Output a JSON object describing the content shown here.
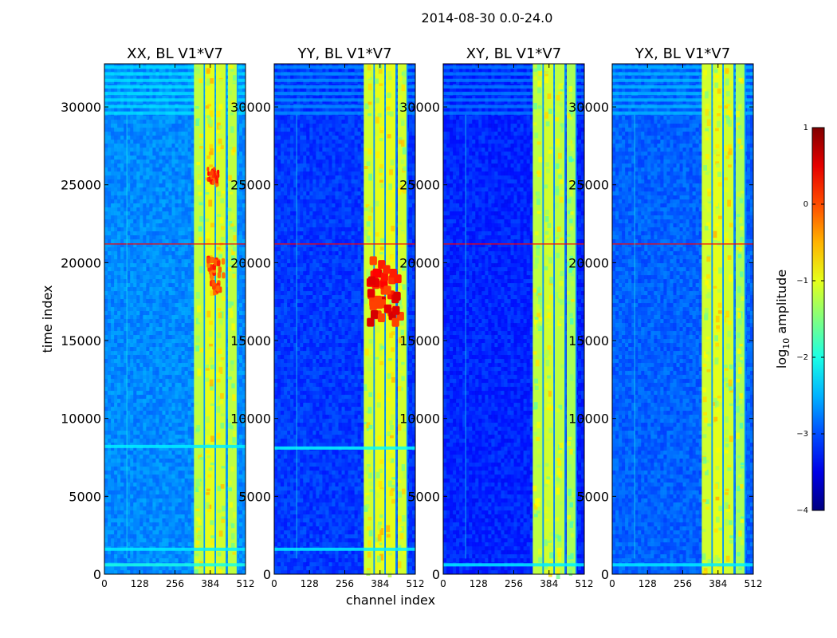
{
  "chart_data": {
    "type": "heatmap",
    "suptitle": "2014-08-30 0.0-24.0",
    "xlabel": "channel index",
    "ylabel": "time index",
    "xlim": [
      0,
      512
    ],
    "ylim": [
      0,
      32768
    ],
    "xticks": [
      0,
      128,
      256,
      384,
      512
    ],
    "yticks": [
      0,
      5000,
      10000,
      15000,
      20000,
      25000,
      30000
    ],
    "colorbar": {
      "label": "log10 amplitude",
      "label_base": "log",
      "label_sub": "10",
      "label_rest": " amplitude",
      "range": [
        -4,
        1
      ],
      "ticks": [
        1,
        0,
        -1,
        -2,
        -3,
        -4
      ],
      "tick_labels": [
        "1",
        "0",
        "−1",
        "−2",
        "−3",
        "−4"
      ],
      "colormap": "jet"
    },
    "panels": [
      {
        "title": "XX, BL V1*V7",
        "background_log_amp": -2.7,
        "bands": [
          {
            "x0": 325,
            "x1": 360,
            "level": -1.2
          },
          {
            "x0": 365,
            "x1": 400,
            "level": -1.0
          },
          {
            "x0": 405,
            "x1": 440,
            "level": -1.1
          },
          {
            "x0": 448,
            "x1": 480,
            "level": -1.2
          }
        ],
        "hot_regions": [
          {
            "x0": 370,
            "x1": 440,
            "y0": 18000,
            "y1": 20500,
            "level": 0.0
          },
          {
            "x0": 370,
            "x1": 420,
            "y0": 25000,
            "y1": 26200,
            "level": 0.1
          }
        ],
        "horizontal_features": [
          {
            "y": 21200,
            "level": 0.4
          },
          {
            "y": 8200,
            "level": -2.2
          },
          {
            "y": 1600,
            "level": -2.2
          },
          {
            "y": 600,
            "level": -2.0
          }
        ]
      },
      {
        "title": "YY, BL V1*V7",
        "background_log_amp": -3.1,
        "bands": [
          {
            "x0": 325,
            "x1": 360,
            "level": -1.1
          },
          {
            "x0": 365,
            "x1": 400,
            "level": -1.0
          },
          {
            "x0": 405,
            "x1": 440,
            "level": -1.0
          },
          {
            "x0": 448,
            "x1": 480,
            "level": -1.1
          }
        ],
        "hot_regions": [
          {
            "x0": 330,
            "x1": 480,
            "y0": 16000,
            "y1": 20500,
            "level": 0.3
          }
        ],
        "horizontal_features": [
          {
            "y": 21200,
            "level": 0.4
          },
          {
            "y": 8100,
            "level": -2.1
          },
          {
            "y": 1600,
            "level": -2.2
          }
        ]
      },
      {
        "title": "XY, BL V1*V7",
        "background_log_amp": -3.2,
        "bands": [
          {
            "x0": 325,
            "x1": 360,
            "level": -1.2
          },
          {
            "x0": 365,
            "x1": 400,
            "level": -1.1
          },
          {
            "x0": 405,
            "x1": 440,
            "level": -1.2
          },
          {
            "x0": 448,
            "x1": 480,
            "level": -1.3
          }
        ],
        "hot_regions": [],
        "horizontal_features": [
          {
            "y": 21200,
            "level": 0.4
          },
          {
            "y": 600,
            "level": -2.2
          }
        ]
      },
      {
        "title": "YX, BL V1*V7",
        "background_log_amp": -2.9,
        "bands": [
          {
            "x0": 325,
            "x1": 360,
            "level": -1.1
          },
          {
            "x0": 365,
            "x1": 400,
            "level": -1.0
          },
          {
            "x0": 405,
            "x1": 440,
            "level": -1.1
          },
          {
            "x0": 448,
            "x1": 480,
            "level": -1.3
          }
        ],
        "hot_regions": [],
        "horizontal_features": [
          {
            "y": 21200,
            "level": 0.4
          },
          {
            "y": 600,
            "level": -2.2
          }
        ]
      }
    ]
  }
}
